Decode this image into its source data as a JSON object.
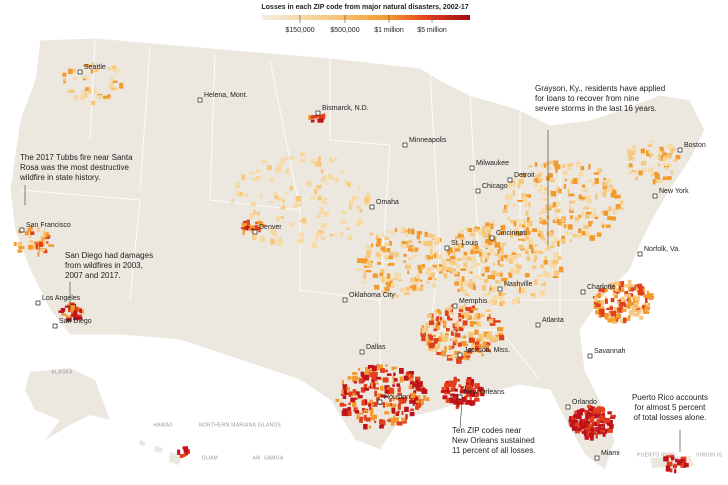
{
  "legend": {
    "title": "Losses in each ZIP code from major natural disasters, 2002-17",
    "labels": [
      "$150,000",
      "$500,000",
      "$1 million",
      "$5 million"
    ]
  },
  "cities": [
    "Seattle",
    "Helena, Mont.",
    "Bismarck, N.D.",
    "Minneapolis",
    "Milwaukee",
    "Detroit",
    "Boston",
    "Chicago",
    "Omaha",
    "Denver",
    "San Francisco",
    "Cincinnati",
    "St. Louis",
    "New York",
    "Norfolk, Va.",
    "Los Angeles",
    "San Diego",
    "Oklahoma City",
    "Memphis",
    "Nashville",
    "Charlotte",
    "Atlanta",
    "Dallas",
    "Jackson, Miss.",
    "Savannah",
    "New Orleans",
    "Houston",
    "Orlando",
    "Miami"
  ],
  "regions": [
    "ALASKA",
    "HAWAII",
    "NORTHERN MARIANA ISLANDS",
    "GUAM",
    "AM. SAMOA",
    "PUERTO RICO",
    "VIRGIN IS."
  ],
  "annotations": [
    [
      "The 2017 Tubbs fire near Santa",
      "Rosa was the most destructive",
      "wildfire in state history."
    ],
    [
      "San Diego had damages",
      "from wildfires in 2003,",
      "2007 and 2017."
    ],
    [
      "Grayson, Ky., residents have applied",
      "for loans to recover from nine",
      "severe storms in the last 16 years."
    ],
    [
      "Ten ZIP codes near",
      "New Orleans sustained",
      "11 percent of all losses."
    ],
    [
      "Puerto Rico accounts",
      "for almost 5 percent",
      "of total losses alone."
    ]
  ]
}
